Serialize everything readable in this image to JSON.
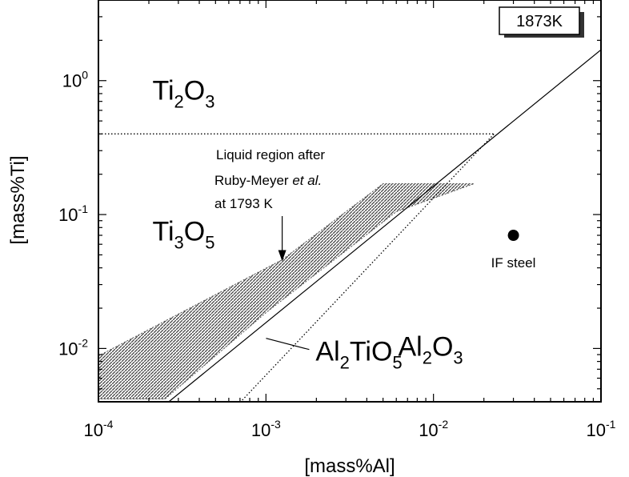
{
  "chart_data": {
    "type": "line",
    "xlabel": "[mass%Al]",
    "ylabel": "[mass%Ti]",
    "xscale": "log",
    "yscale": "log",
    "xlim": [
      0.0001,
      0.1
    ],
    "ylim": [
      0.004,
      4
    ],
    "x_ticks": [
      {
        "value": 0.0001,
        "base": "10",
        "exp": "-4"
      },
      {
        "value": 0.001,
        "base": "10",
        "exp": "-3"
      },
      {
        "value": 0.01,
        "base": "10",
        "exp": "-2"
      },
      {
        "value": 0.1,
        "base": "10",
        "exp": "-1"
      }
    ],
    "y_ticks": [
      {
        "value": 0.01,
        "base": "10",
        "exp": "-2"
      },
      {
        "value": 0.1,
        "base": "10",
        "exp": "-1"
      },
      {
        "value": 1,
        "base": "10",
        "exp": "0"
      }
    ],
    "temperature_label": "1873K",
    "phases": [
      {
        "id": "ti2o3",
        "main": "Ti",
        "sub1": "2",
        "mid": "O",
        "sub2": "3",
        "tail": "",
        "x": 0.00021,
        "y": 0.72
      },
      {
        "id": "ti3o5",
        "main": "Ti",
        "sub1": "3",
        "mid": "O",
        "sub2": "5",
        "tail": "",
        "x": 0.00021,
        "y": 0.064
      },
      {
        "id": "al2tio5",
        "main": "Al",
        "sub1": "2",
        "mid": "TiO",
        "sub2": "5",
        "tail": "",
        "x": 0.00198,
        "y": 0.0081
      },
      {
        "id": "al2o3",
        "main": "Al",
        "sub1": "2",
        "mid": "O",
        "sub2": "3",
        "tail": "",
        "x": 0.00615,
        "y": 0.0088
      }
    ],
    "boundaries": [
      {
        "name": "Ti2O3/Ti3O5",
        "style": "dotted",
        "points": [
          [
            0.0001,
            0.4
          ],
          [
            0.023,
            0.4
          ]
        ]
      },
      {
        "name": "Ti3O5/Al2O3",
        "style": "solid",
        "points": [
          [
            0.00025,
            0.0038
          ],
          [
            0.1,
            1.7
          ]
        ]
      },
      {
        "name": "Al2TiO5/Al2O3",
        "style": "dotted",
        "points": [
          [
            0.00068,
            0.0038
          ],
          [
            0.023,
            0.4
          ]
        ]
      }
    ],
    "liquid_region": {
      "label_lines": [
        "Liquid region after",
        "Ruby-Meyer ",
        "et al.",
        "at 1793 K"
      ],
      "upper": [
        [
          0.0001,
          0.0088
        ],
        [
          0.00125,
          0.046
        ],
        [
          0.005,
          0.17
        ],
        [
          0.0175,
          0.17
        ]
      ],
      "lower": [
        [
          0.0175,
          0.17
        ],
        [
          0.006,
          0.105
        ],
        [
          0.001,
          0.0185
        ],
        [
          0.00025,
          0.0042
        ],
        [
          0.0001,
          0.0042
        ]
      ],
      "arrow_target": [
        0.00125,
        0.046
      ]
    },
    "points": [
      {
        "label": "IF steel",
        "x": 0.03,
        "y": 0.07
      }
    ]
  }
}
